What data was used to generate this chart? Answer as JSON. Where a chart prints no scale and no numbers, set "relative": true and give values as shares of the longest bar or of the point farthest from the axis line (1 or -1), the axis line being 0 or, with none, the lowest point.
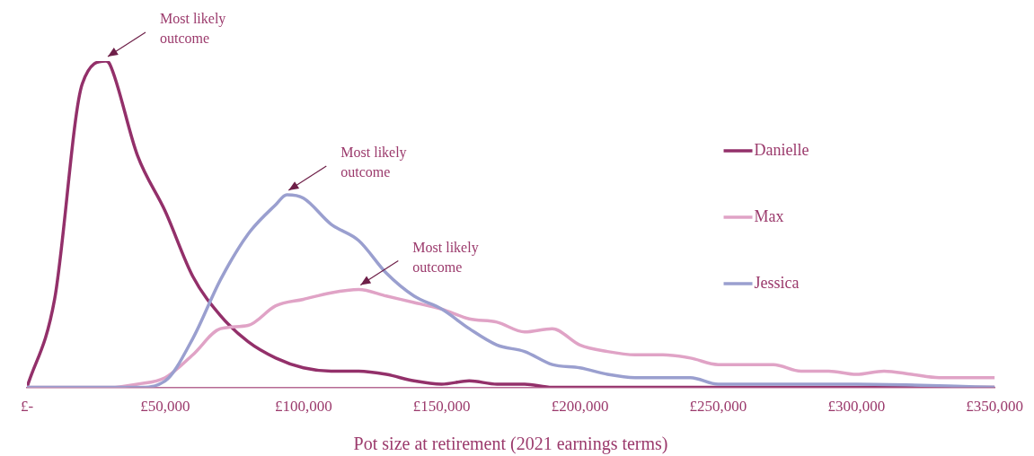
{
  "chart_data": {
    "type": "line",
    "relative": true,
    "xlabel": "Pot size at retirement (2021 earnings terms)",
    "xlim": [
      0,
      350000
    ],
    "xticks": [
      {
        "value": 0,
        "label": "£-"
      },
      {
        "value": 50000,
        "label": "£50,000"
      },
      {
        "value": 100000,
        "label": "£100,000"
      },
      {
        "value": 150000,
        "label": "£150,000"
      },
      {
        "value": 200000,
        "label": "£200,000"
      },
      {
        "value": 250000,
        "label": "£250,000"
      },
      {
        "value": 300000,
        "label": "£300,000"
      },
      {
        "value": 350000,
        "label": "£350,000"
      }
    ],
    "x": [
      0,
      10000,
      20000,
      30000,
      40000,
      50000,
      60000,
      70000,
      80000,
      90000,
      100000,
      110000,
      120000,
      130000,
      140000,
      150000,
      160000,
      170000,
      180000,
      190000,
      200000,
      210000,
      220000,
      230000,
      240000,
      250000,
      260000,
      270000,
      280000,
      290000,
      300000,
      310000,
      320000,
      330000,
      340000,
      350000
    ],
    "series": [
      {
        "name": "Danielle",
        "color": "#93306a",
        "x": [
          0,
          10000,
          20000,
          28600,
          30000,
          40000,
          50000,
          60000,
          70000,
          80000,
          90000,
          100000,
          110000,
          120000,
          130000,
          140000,
          150000,
          160000,
          170000,
          180000,
          190000,
          200000,
          250000,
          300000,
          350000
        ],
        "values": [
          0,
          0.27,
          0.93,
          1,
          0.99,
          0.71,
          0.54,
          0.34,
          0.22,
          0.14,
          0.09,
          0.06,
          0.05,
          0.05,
          0.04,
          0.02,
          0.01,
          0.02,
          0.01,
          0.01,
          0,
          0,
          0,
          0,
          0
        ]
      },
      {
        "name": "Max",
        "color": "#e0a3c6",
        "values": [
          0,
          0,
          0,
          0,
          0.01,
          0.03,
          0.1,
          0.18,
          0.19,
          0.25,
          0.27,
          0.29,
          0.3,
          0.28,
          0.26,
          0.24,
          0.21,
          0.2,
          0.17,
          0.18,
          0.13,
          0.11,
          0.1,
          0.1,
          0.09,
          0.07,
          0.07,
          0.07,
          0.05,
          0.05,
          0.04,
          0.05,
          0.04,
          0.03,
          0.03,
          0.03
        ]
      },
      {
        "name": "Jessica",
        "color": "#9a9fcf",
        "x": [
          0,
          10000,
          20000,
          30000,
          40000,
          50000,
          60000,
          70000,
          80000,
          90000,
          94000,
          100000,
          110000,
          120000,
          130000,
          140000,
          150000,
          160000,
          170000,
          180000,
          190000,
          200000,
          210000,
          220000,
          230000,
          240000,
          250000,
          270000,
          300000,
          350000
        ],
        "values": [
          0,
          0,
          0,
          0,
          0,
          0.02,
          0.15,
          0.33,
          0.47,
          0.56,
          0.59,
          0.58,
          0.5,
          0.45,
          0.35,
          0.28,
          0.24,
          0.18,
          0.13,
          0.11,
          0.07,
          0.06,
          0.04,
          0.03,
          0.03,
          0.03,
          0.01,
          0.01,
          0.01,
          0
        ]
      }
    ],
    "annotations": [
      {
        "text": "Most likely outcome",
        "x": 28600,
        "y": 1
      },
      {
        "text": "Most likely outcome",
        "x": 94000,
        "y": 0.59
      },
      {
        "text": "Most likely outcome",
        "x": 120000,
        "y": 0.3
      }
    ],
    "legend": "right",
    "grid": false,
    "marker": "none",
    "line_style": "solid"
  }
}
